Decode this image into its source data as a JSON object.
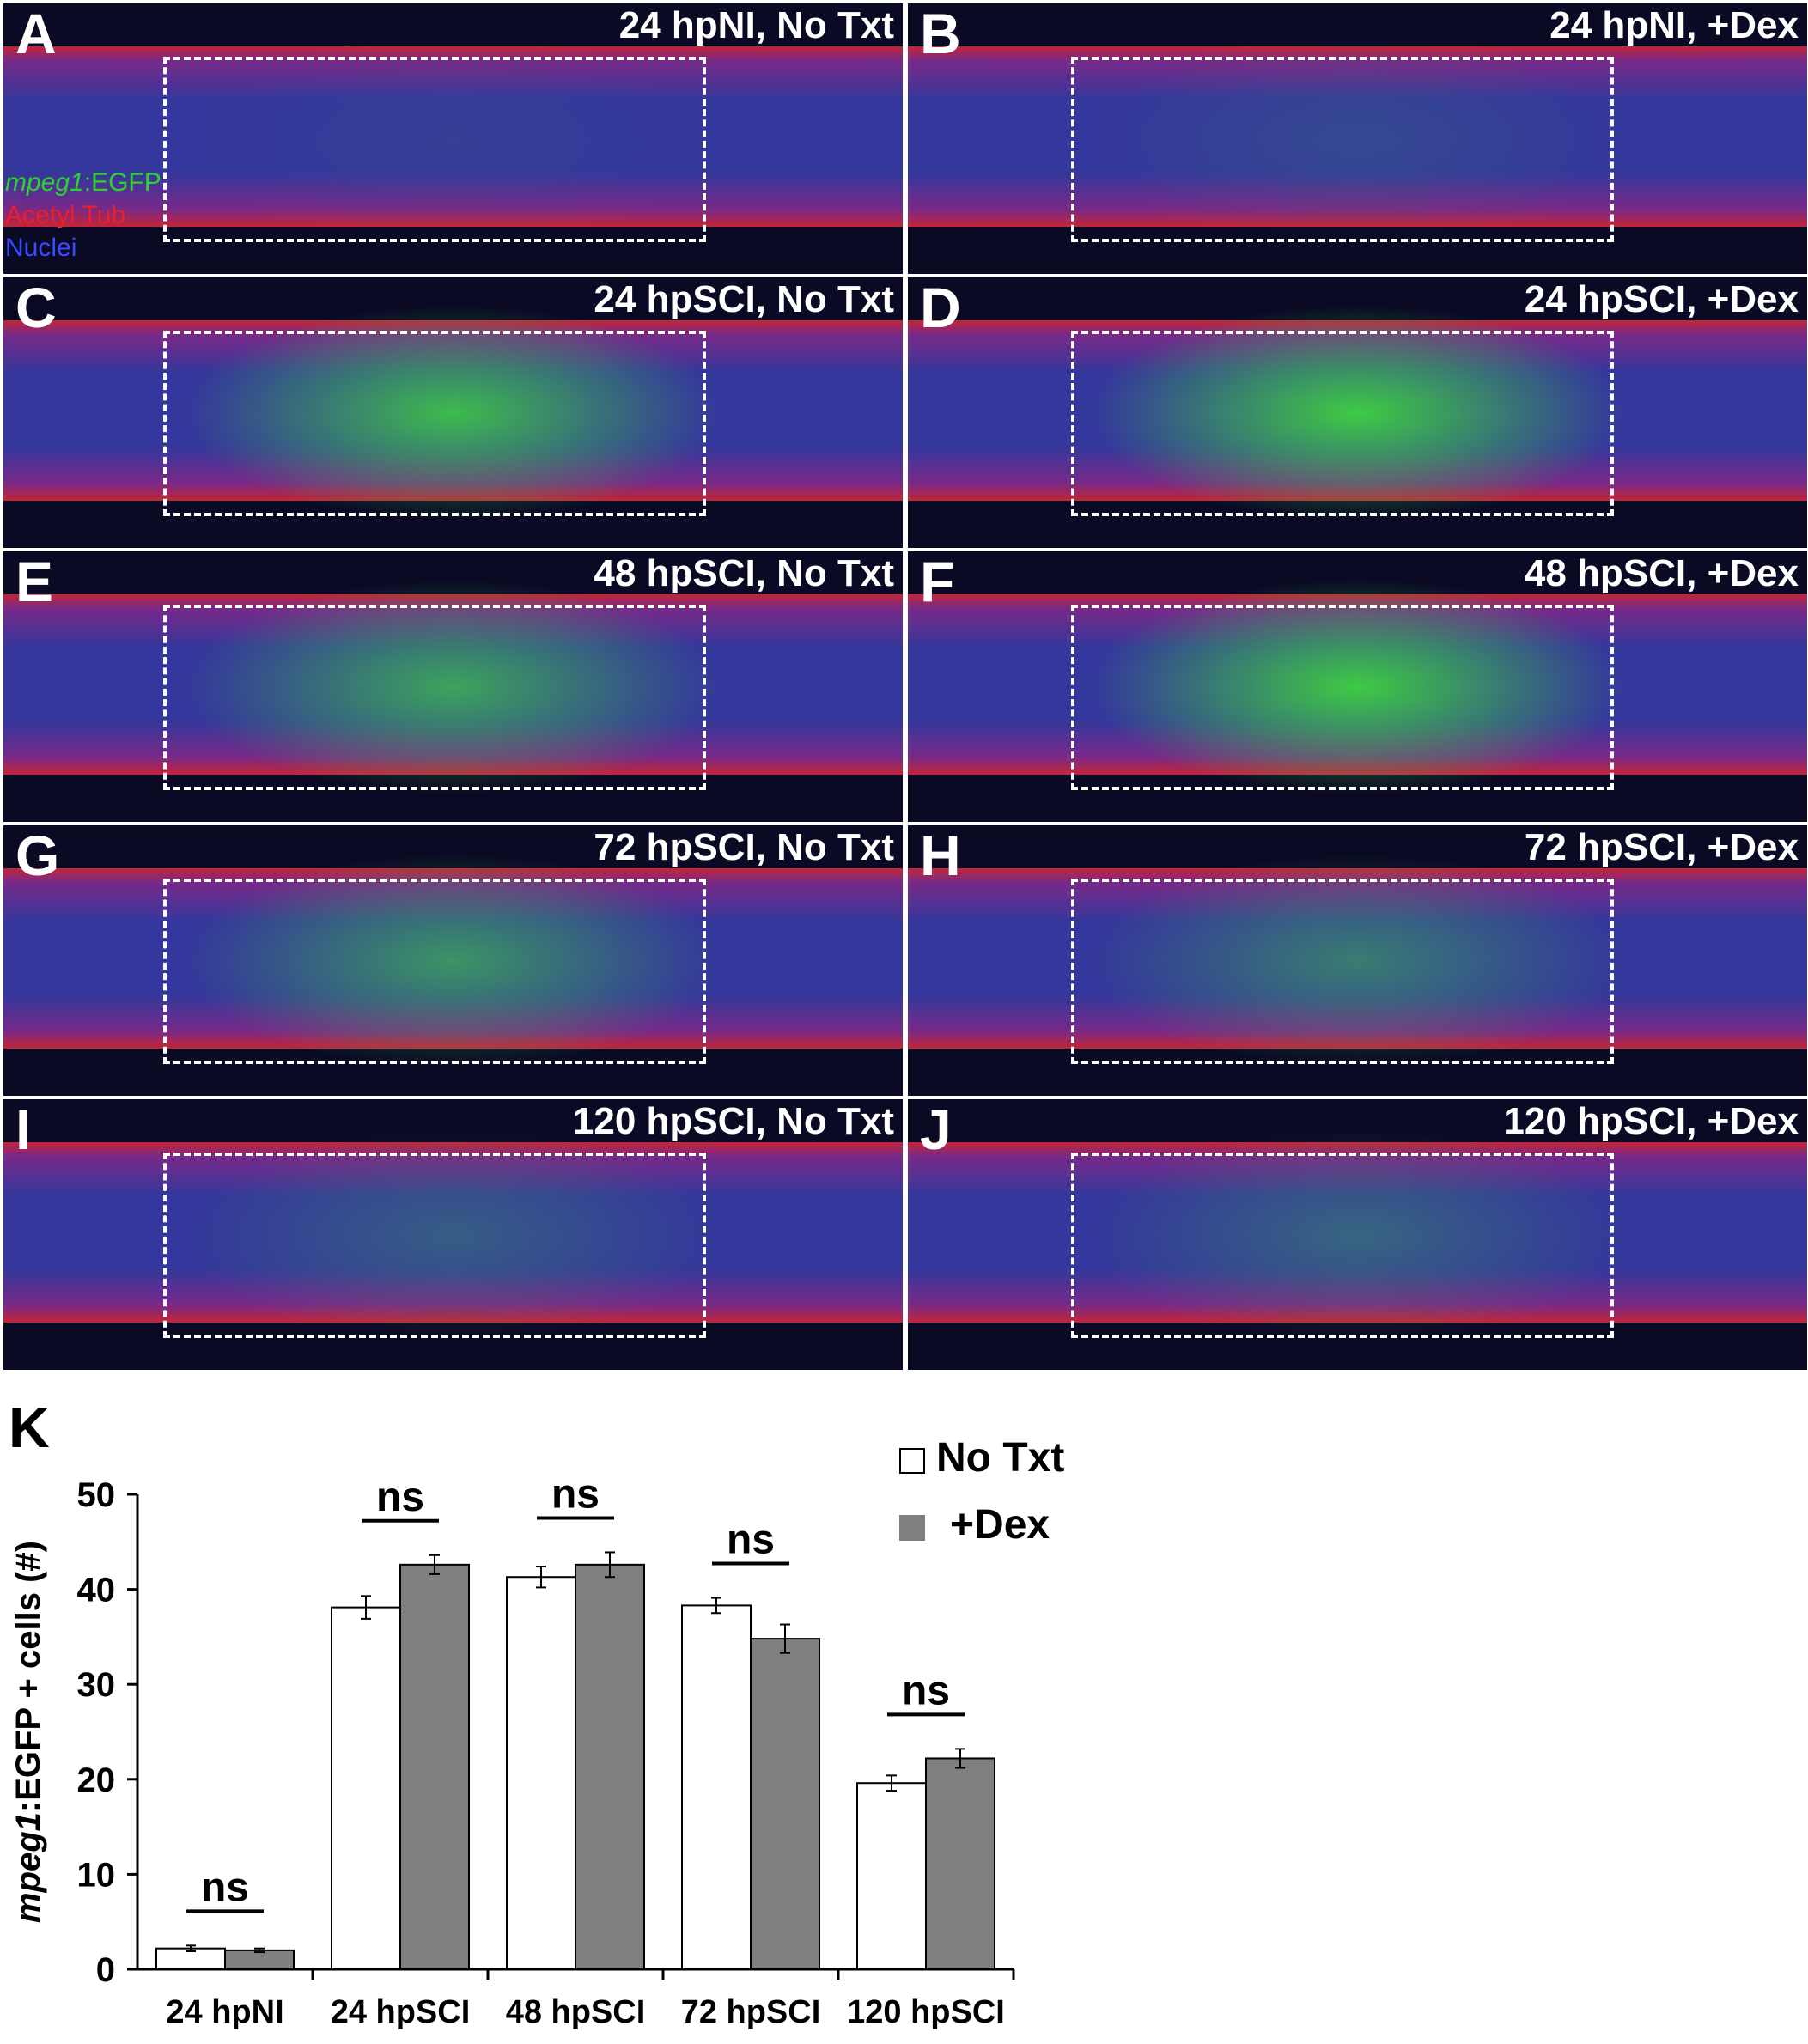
{
  "panels": [
    {
      "letter": "A",
      "condition": "24 hpNI, No Txt"
    },
    {
      "letter": "B",
      "condition": "24 hpNI, +Dex"
    },
    {
      "letter": "C",
      "condition": "24 hpSCI, No Txt"
    },
    {
      "letter": "D",
      "condition": "24 hpSCI, +Dex"
    },
    {
      "letter": "E",
      "condition": "48 hpSCI, No Txt"
    },
    {
      "letter": "F",
      "condition": "48 hpSCI, +Dex"
    },
    {
      "letter": "G",
      "condition": "72 hpSCI, No Txt"
    },
    {
      "letter": "H",
      "condition": "72 hpSCI, +Dex"
    },
    {
      "letter": "I",
      "condition": "120 hpSCI, No Txt"
    },
    {
      "letter": "J",
      "condition": "120 hpSCI, +Dex"
    }
  ],
  "stain_legend": [
    {
      "italic_part": "mpeg1",
      "rest": ":EGFP",
      "color": "#2fd12f"
    },
    {
      "italic_part": "",
      "rest": "Acetyl Tub",
      "color": "#e8202a"
    },
    {
      "italic_part": "",
      "rest": "Nuclei",
      "color": "#3a4bff"
    }
  ],
  "colors": {
    "panel_background": "#0a0a25",
    "tissue_blue": "#3b3fb0",
    "tissue_magenta": "#8a2f9a",
    "egfp_green": "#3fd23f",
    "tubulin_red": "#e42a3a",
    "bar_no_txt": "#ffffff",
    "bar_dex": "#808080"
  },
  "chart_panel_letter": "K",
  "chart_data": {
    "type": "bar",
    "categories": [
      "24 hpNI",
      "24 hpSCI",
      "48 hpSCI",
      "72 hpSCI",
      "120 hpSCI"
    ],
    "series": [
      {
        "name": "No Txt",
        "values": [
          2.2,
          38.1,
          41.3,
          38.3,
          19.6
        ],
        "errors": [
          0.3,
          1.2,
          1.1,
          0.8,
          0.8
        ],
        "color": "#ffffff"
      },
      {
        "name": "+Dex",
        "values": [
          2.0,
          42.6,
          42.6,
          34.8,
          22.2
        ],
        "errors": [
          0.2,
          1.0,
          1.3,
          1.5,
          1.0
        ],
        "color": "#808080"
      }
    ],
    "significance": [
      "ns",
      "ns",
      "ns",
      "ns",
      "ns"
    ],
    "ylabel_italic": "mpeg1",
    "ylabel_rest": ":EGFP + cells (#)",
    "ylim": [
      0,
      50
    ],
    "yticks": [
      0,
      10,
      20,
      30,
      40,
      50
    ],
    "legend_position": "top-right",
    "grid": false
  }
}
